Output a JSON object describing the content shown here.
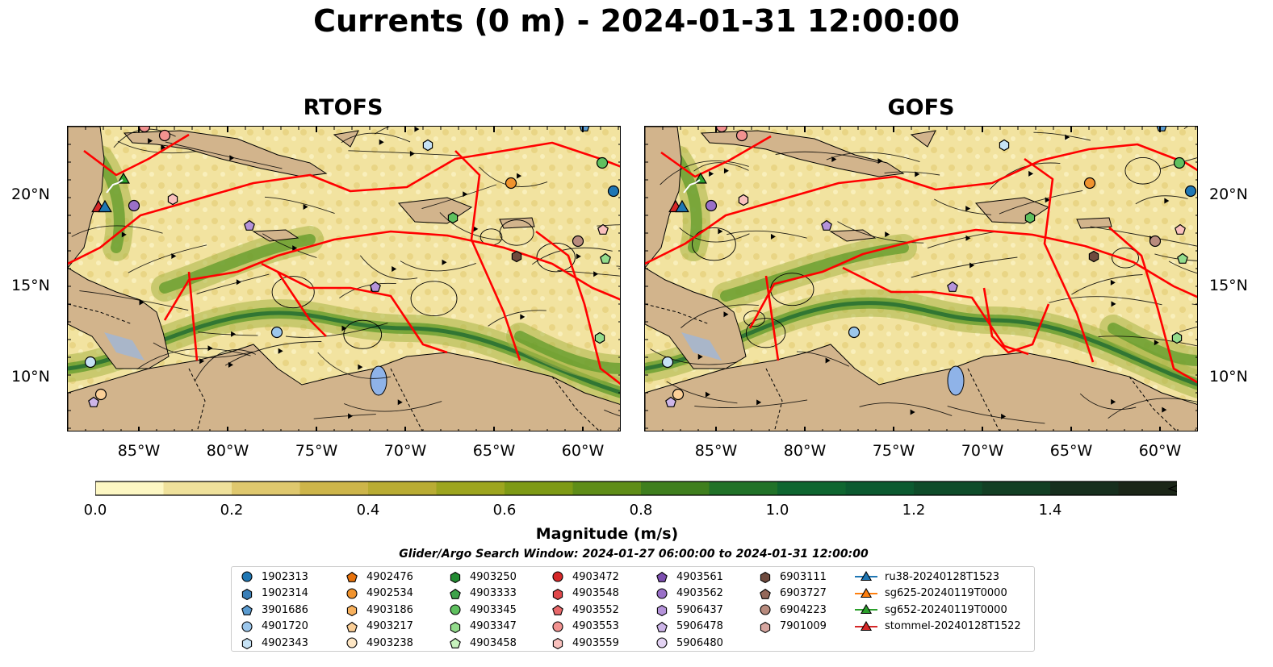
{
  "title": "Currents (0 m) - 2024-01-31 12:00:00",
  "panels": [
    {
      "title": "RTOFS"
    },
    {
      "title": "GOFS"
    }
  ],
  "axes": {
    "lat_ticks": [
      "20°N",
      "15°N",
      "10°N"
    ],
    "lon_ticks": [
      "85°W",
      "80°W",
      "75°W",
      "70°W",
      "65°W",
      "60°W"
    ]
  },
  "colorbar": {
    "label": "Magnitude (m/s)",
    "ticks": [
      "0.0",
      "0.2",
      "0.4",
      "0.6",
      "0.8",
      "1.0",
      "1.2",
      "1.4"
    ],
    "colors": [
      "#fdf7c3",
      "#efe19b",
      "#dfc86e",
      "#cdb54a",
      "#b9ac33",
      "#9da51f",
      "#7e9a15",
      "#5f8d18",
      "#3f7f1e",
      "#217228",
      "#0f6630",
      "#0c5a30",
      "#0f4c2a",
      "#133f24",
      "#172f1e",
      "#1b2618"
    ],
    "extend": "max"
  },
  "search_window": "Glider/Argo Search Window: 2024-01-27 06:00:00 to 2024-01-31 12:00:00",
  "legend": {
    "columns": [
      [
        {
          "label": "1902313",
          "marker": "circle",
          "color": "#1f77b4"
        },
        {
          "label": "1902314",
          "marker": "hexagon",
          "color": "#3a7fb8"
        },
        {
          "label": "3901686",
          "marker": "pentagon",
          "color": "#5a9bd0"
        },
        {
          "label": "4901720",
          "marker": "circle",
          "color": "#9cc7ec"
        },
        {
          "label": "4902343",
          "marker": "hexagon",
          "color": "#c6e2f5"
        }
      ],
      [
        {
          "label": "4902476",
          "marker": "pentagon",
          "color": "#e8720c"
        },
        {
          "label": "4902534",
          "marker": "circle",
          "color": "#f0932e"
        },
        {
          "label": "4903186",
          "marker": "hexagon",
          "color": "#f7b15e"
        },
        {
          "label": "4903217",
          "marker": "pentagon",
          "color": "#fbcf97"
        },
        {
          "label": "4903238",
          "marker": "circle",
          "color": "#fde6c4"
        }
      ],
      [
        {
          "label": "4903250",
          "marker": "hexagon",
          "color": "#228b32"
        },
        {
          "label": "4903333",
          "marker": "pentagon",
          "color": "#3ea34a"
        },
        {
          "label": "4903345",
          "marker": "circle",
          "color": "#5fc05f"
        },
        {
          "label": "4903347",
          "marker": "hexagon",
          "color": "#93dc8c"
        },
        {
          "label": "4903458",
          "marker": "pentagon",
          "color": "#c7f2bd"
        }
      ],
      [
        {
          "label": "4903472",
          "marker": "circle",
          "color": "#d62728"
        },
        {
          "label": "4903548",
          "marker": "hexagon",
          "color": "#e0474a"
        },
        {
          "label": "4903552",
          "marker": "pentagon",
          "color": "#e8686a"
        },
        {
          "label": "4903553",
          "marker": "circle",
          "color": "#f29290"
        },
        {
          "label": "4903559",
          "marker": "hexagon",
          "color": "#f9c0bd"
        }
      ],
      [
        {
          "label": "4903561",
          "marker": "pentagon",
          "color": "#7d4fb0"
        },
        {
          "label": "4903562",
          "marker": "circle",
          "color": "#9a70c8"
        },
        {
          "label": "5906437",
          "marker": "hexagon",
          "color": "#b593da"
        },
        {
          "label": "5906478",
          "marker": "pentagon",
          "color": "#cdb5e8"
        },
        {
          "label": "5906480",
          "marker": "circle",
          "color": "#e3d3f3"
        }
      ],
      [
        {
          "label": "6903111",
          "marker": "hexagon",
          "color": "#6e4a3e"
        },
        {
          "label": "6903727",
          "marker": "pentagon",
          "color": "#94685a"
        },
        {
          "label": "6904223",
          "marker": "circle",
          "color": "#b88b7e"
        },
        {
          "label": "7901009",
          "marker": "hexagon",
          "color": "#d6a6a0"
        }
      ],
      [
        {
          "label": "ru38-20240128T1523",
          "marker": "triangle",
          "color": "#1f77b4"
        },
        {
          "label": "sg625-20240119T0000",
          "marker": "triangle",
          "color": "#ff7f0e"
        },
        {
          "label": "sg652-20240119T0000",
          "marker": "triangle",
          "color": "#2ca02c"
        },
        {
          "label": "stommel-20240128T1522",
          "marker": "triangle",
          "color": "#d62728"
        }
      ]
    ]
  },
  "colors": {
    "land": "#d2b48c",
    "lake": "#8fb3e8",
    "track": "#ff0000",
    "streamline": "#000000"
  }
}
